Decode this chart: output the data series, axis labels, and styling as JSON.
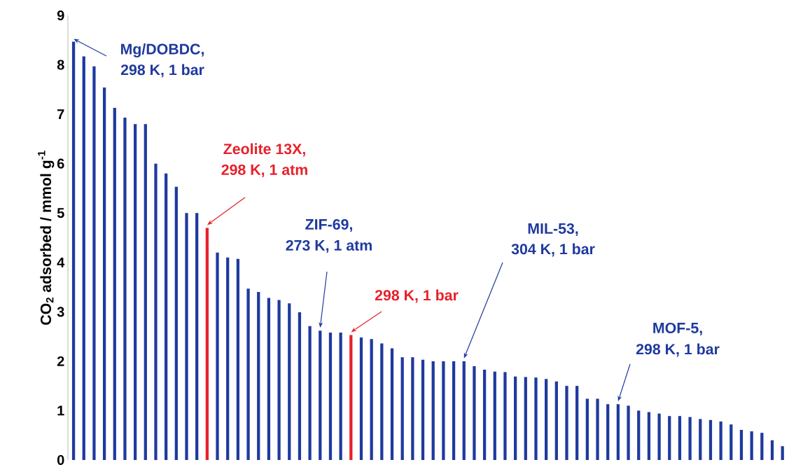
{
  "chart_data": {
    "type": "bar",
    "ylabel": "CO$_{2}$ adsorbed / mmol g$^{-1}$",
    "categories": [
      null,
      null,
      null,
      null,
      null,
      null,
      null,
      null,
      null,
      null,
      null,
      null,
      null,
      null,
      null,
      null,
      null,
      null,
      null,
      null,
      null,
      null,
      null,
      null,
      null,
      null,
      null,
      null,
      null,
      null,
      null,
      null,
      null,
      null,
      null,
      null,
      null,
      null,
      null,
      null,
      null,
      null,
      null,
      null,
      null,
      null,
      null,
      null,
      null,
      null,
      null,
      null,
      null,
      null,
      null,
      null,
      null,
      null,
      null,
      null,
      null,
      null,
      null,
      null,
      null,
      null,
      null,
      null,
      null,
      null
    ],
    "values": [
      8.47,
      8.17,
      7.97,
      7.54,
      7.13,
      6.93,
      6.8,
      6.8,
      6.0,
      5.8,
      5.53,
      5.0,
      5.0,
      4.7,
      4.2,
      4.1,
      4.07,
      3.47,
      3.4,
      3.28,
      3.24,
      3.17,
      2.99,
      2.71,
      2.62,
      2.58,
      2.58,
      2.53,
      2.48,
      2.45,
      2.36,
      2.26,
      2.08,
      2.08,
      2.03,
      2.0,
      2.0,
      2.0,
      2.0,
      1.9,
      1.83,
      1.79,
      1.78,
      1.69,
      1.68,
      1.67,
      1.64,
      1.59,
      1.5,
      1.5,
      1.24,
      1.24,
      1.13,
      1.13,
      1.1,
      1.0,
      0.97,
      0.94,
      0.89,
      0.89,
      0.87,
      0.83,
      0.81,
      0.78,
      0.72,
      0.61,
      0.58,
      0.55,
      0.4,
      0.28
    ],
    "colors": [
      "#1f3a9e",
      "#1f3a9e",
      "#1f3a9e",
      "#1f3a9e",
      "#1f3a9e",
      "#1f3a9e",
      "#1f3a9e",
      "#1f3a9e",
      "#1f3a9e",
      "#1f3a9e",
      "#1f3a9e",
      "#1f3a9e",
      "#1f3a9e",
      "#e8202a",
      "#1f3a9e",
      "#1f3a9e",
      "#1f3a9e",
      "#1f3a9e",
      "#1f3a9e",
      "#1f3a9e",
      "#1f3a9e",
      "#1f3a9e",
      "#1f3a9e",
      "#1f3a9e",
      "#1f3a9e",
      "#1f3a9e",
      "#1f3a9e",
      "#e8202a",
      "#1f3a9e",
      "#1f3a9e",
      "#1f3a9e",
      "#1f3a9e",
      "#1f3a9e",
      "#1f3a9e",
      "#1f3a9e",
      "#1f3a9e",
      "#1f3a9e",
      "#1f3a9e",
      "#1f3a9e",
      "#1f3a9e",
      "#1f3a9e",
      "#1f3a9e",
      "#1f3a9e",
      "#1f3a9e",
      "#1f3a9e",
      "#1f3a9e",
      "#1f3a9e",
      "#1f3a9e",
      "#1f3a9e",
      "#1f3a9e",
      "#1f3a9e",
      "#1f3a9e",
      "#1f3a9e",
      "#1f3a9e",
      "#1f3a9e",
      "#1f3a9e",
      "#1f3a9e",
      "#1f3a9e",
      "#1f3a9e",
      "#1f3a9e",
      "#1f3a9e",
      "#1f3a9e",
      "#1f3a9e",
      "#1f3a9e",
      "#1f3a9e",
      "#1f3a9e",
      "#1f3a9e",
      "#1f3a9e",
      "#1f3a9e",
      "#1f3a9e"
    ],
    "ylim": [
      0,
      9
    ],
    "yticks": [
      0,
      1,
      2,
      3,
      4,
      5,
      6,
      7,
      8,
      9
    ],
    "annotations": [
      "Mg/DOBDC,",
      "298 K, 1 bar",
      "Zeolite 13X,",
      "298 K, 1 atm",
      "ZIF-69,",
      "273 K, 1 atm",
      "298 K, 1 bar",
      "MIL-53,",
      "304 K, 1 bar",
      "MOF-5,",
      "298 K, 1 bar"
    ]
  }
}
